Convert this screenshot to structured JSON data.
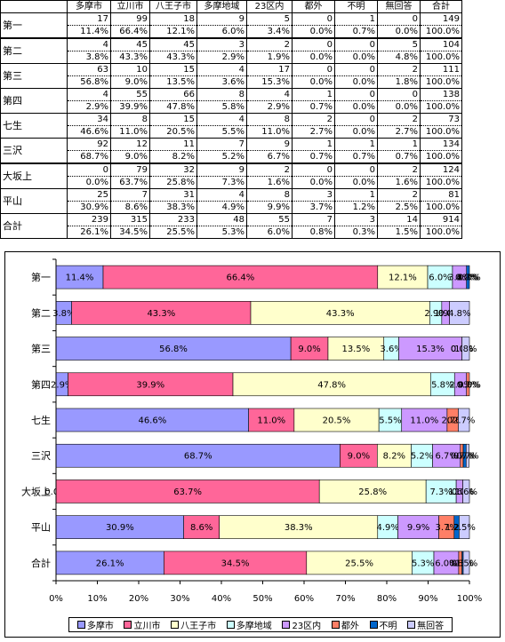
{
  "table": {
    "headers": [
      "多摩市",
      "立川市",
      "八王子市",
      "多摩地域",
      "23区内",
      "都外",
      "不明",
      "無回答",
      "合計"
    ],
    "rows": [
      {
        "label": "第一",
        "counts": [
          "17",
          "99",
          "18",
          "9",
          "5",
          "0",
          "1",
          "0",
          "149"
        ],
        "percents": [
          "11.4%",
          "66.4%",
          "12.1%",
          "6.0%",
          "3.4%",
          "0.0%",
          "0.7%",
          "0.0%",
          "100.0%"
        ]
      },
      {
        "label": "第二",
        "counts": [
          "4",
          "45",
          "45",
          "3",
          "2",
          "0",
          "0",
          "5",
          "104"
        ],
        "percents": [
          "3.8%",
          "43.3%",
          "43.3%",
          "2.9%",
          "1.9%",
          "0.0%",
          "0.0%",
          "4.8%",
          "100.0%"
        ]
      },
      {
        "label": "第三",
        "counts": [
          "63",
          "10",
          "15",
          "4",
          "17",
          "0",
          "0",
          "2",
          "111"
        ],
        "percents": [
          "56.8%",
          "9.0%",
          "13.5%",
          "3.6%",
          "15.3%",
          "0.0%",
          "0.0%",
          "1.8%",
          "100.0%"
        ]
      },
      {
        "label": "第四",
        "counts": [
          "4",
          "55",
          "66",
          "8",
          "4",
          "1",
          "0",
          "0",
          "138"
        ],
        "percents": [
          "2.9%",
          "39.9%",
          "47.8%",
          "5.8%",
          "2.9%",
          "0.7%",
          "0.0%",
          "0.0%",
          "100.0%"
        ]
      },
      {
        "label": "七生",
        "counts": [
          "34",
          "8",
          "15",
          "4",
          "8",
          "2",
          "0",
          "2",
          "73"
        ],
        "percents": [
          "46.6%",
          "11.0%",
          "20.5%",
          "5.5%",
          "11.0%",
          "2.7%",
          "0.0%",
          "2.7%",
          "100.0%"
        ]
      },
      {
        "label": "三沢",
        "counts": [
          "92",
          "12",
          "11",
          "7",
          "9",
          "1",
          "1",
          "1",
          "134"
        ],
        "percents": [
          "68.7%",
          "9.0%",
          "8.2%",
          "5.2%",
          "6.7%",
          "0.7%",
          "0.7%",
          "0.7%",
          "100.0%"
        ]
      },
      {
        "label": "大坂上",
        "counts": [
          "0",
          "79",
          "32",
          "9",
          "2",
          "0",
          "0",
          "2",
          "124"
        ],
        "percents": [
          "0.0%",
          "63.7%",
          "25.8%",
          "7.3%",
          "1.6%",
          "0.0%",
          "0.0%",
          "1.6%",
          "100.0%"
        ]
      },
      {
        "label": "平山",
        "counts": [
          "25",
          "7",
          "31",
          "4",
          "8",
          "3",
          "1",
          "2",
          "81"
        ],
        "percents": [
          "30.9%",
          "8.6%",
          "38.3%",
          "4.9%",
          "9.9%",
          "3.7%",
          "1.2%",
          "2.5%",
          "100.0%"
        ]
      },
      {
        "label": "合計",
        "counts": [
          "239",
          "315",
          "233",
          "48",
          "55",
          "7",
          "3",
          "14",
          "914"
        ],
        "percents": [
          "26.1%",
          "34.5%",
          "25.5%",
          "5.3%",
          "6.0%",
          "0.8%",
          "0.3%",
          "1.5%",
          "100.0%"
        ]
      }
    ]
  },
  "chart_data": {
    "type": "bar",
    "orientation": "horizontal",
    "stacked": "percent",
    "categories": [
      "第一",
      "第二",
      "第三",
      "第四",
      "七生",
      "三沢",
      "大坂上",
      "平山",
      "合計"
    ],
    "series": [
      {
        "name": "多摩市",
        "color": "#9999ff",
        "values": [
          11.4,
          3.8,
          56.8,
          2.9,
          46.6,
          68.7,
          0.0,
          30.9,
          26.1
        ]
      },
      {
        "name": "立川市",
        "color": "#ff6699",
        "values": [
          66.4,
          43.3,
          9.0,
          39.9,
          11.0,
          9.0,
          63.7,
          8.6,
          34.5
        ]
      },
      {
        "name": "八王子市",
        "color": "#ffffcc",
        "values": [
          12.1,
          43.3,
          13.5,
          47.8,
          20.5,
          8.2,
          25.8,
          38.3,
          25.5
        ]
      },
      {
        "name": "多摩地域",
        "color": "#ccffff",
        "values": [
          6.0,
          2.9,
          3.6,
          5.8,
          5.5,
          5.2,
          7.3,
          4.9,
          5.3
        ]
      },
      {
        "name": "23区内",
        "color": "#cc99ff",
        "values": [
          3.4,
          1.9,
          15.3,
          2.9,
          11.0,
          6.7,
          1.6,
          9.9,
          6.0
        ]
      },
      {
        "name": "都外",
        "color": "#ff7f66",
        "values": [
          0.0,
          0.0,
          0.0,
          0.7,
          2.7,
          0.7,
          0.0,
          3.7,
          0.8
        ]
      },
      {
        "name": "不明",
        "color": "#0066cc",
        "values": [
          0.7,
          0.0,
          0.0,
          0.0,
          0.0,
          0.7,
          0.0,
          1.2,
          0.3
        ]
      },
      {
        "name": "無回答",
        "color": "#ccccff",
        "values": [
          0.0,
          4.8,
          1.8,
          0.0,
          2.7,
          0.7,
          1.6,
          2.5,
          1.5
        ]
      }
    ],
    "labels": [
      [
        "11.4%",
        "66.4%",
        "12.1%",
        "6.0%",
        "3.4%",
        "0.0%",
        "0.7%",
        "0.0%"
      ],
      [
        "3.8%",
        "43.3%",
        "43.3%",
        "2.9%",
        "1.9%",
        "0.0%",
        "0.0%",
        "4.8%"
      ],
      [
        "56.8%",
        "9.0%",
        "13.5%",
        "3.6%",
        "15.3%",
        "0.0%",
        "0.0%",
        "1.8%"
      ],
      [
        "2.9%",
        "39.9%",
        "47.8%",
        "5.8%",
        "2.9%",
        "0.7%",
        "0.0%",
        "0.0%"
      ],
      [
        "46.6%",
        "11.0%",
        "20.5%",
        "5.5%",
        "11.0%",
        "2.7%",
        "0.0%",
        "2.7%"
      ],
      [
        "68.7%",
        "9.0%",
        "8.2%",
        "5.2%",
        "6.7%",
        "0.7%",
        "0.7%",
        "0.7%"
      ],
      [
        "0.0%",
        "63.7%",
        "25.8%",
        "7.3%",
        "1.6%",
        "0.0%",
        "0.0%",
        "1.6%"
      ],
      [
        "30.9%",
        "8.6%",
        "38.3%",
        "4.9%",
        "9.9%",
        "3.7%",
        "1.2%",
        "2.5%"
      ],
      [
        "26.1%",
        "34.5%",
        "25.5%",
        "5.3%",
        "6.0%",
        "0.8%",
        "0.3%",
        "1.5%"
      ]
    ],
    "xlim": [
      0,
      100
    ],
    "xticks": [
      "0%",
      "10%",
      "20%",
      "30%",
      "40%",
      "50%",
      "60%",
      "70%",
      "80%",
      "90%",
      "100%"
    ],
    "title": "",
    "xlabel": "",
    "ylabel": "",
    "grid": false,
    "legend": "bottom"
  }
}
